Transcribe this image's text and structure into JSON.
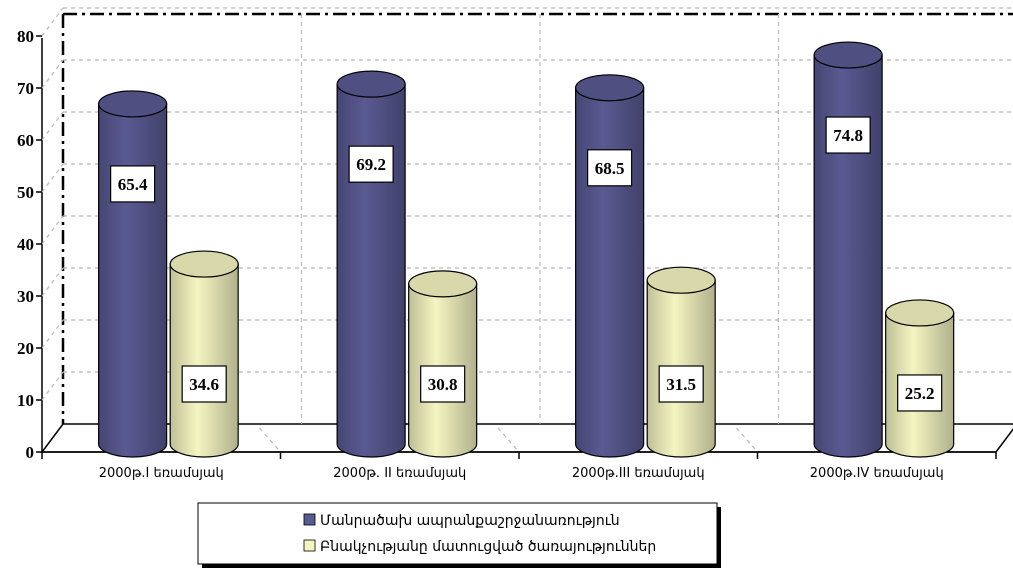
{
  "chart_data": {
    "type": "bar",
    "categories": [
      "2000թ.I եռամսյակ",
      "2000թ. II եռամսյակ",
      "2000թ.III եռամսյակ",
      "2000թ.IV եռամսյակ"
    ],
    "series": [
      {
        "name": "Մանրածախ ապրանքաշրջանառություն",
        "values": [
          65.4,
          69.2,
          68.5,
          74.8
        ],
        "color": "#5a5a93"
      },
      {
        "name": "Բնակչությանը մատուցված ծառայություններ",
        "values": [
          34.6,
          30.8,
          31.5,
          25.2
        ],
        "color": "#f5f5c2"
      }
    ],
    "y_ticks": [
      "0",
      "10",
      "20",
      "30",
      "40",
      "50",
      "60",
      "70",
      "80"
    ],
    "data_labels": [
      [
        "65.4",
        "69.2",
        "68.5",
        "74.8"
      ],
      [
        "34.6",
        "30.8",
        "31.5",
        "25.2"
      ]
    ],
    "ylim": [
      0,
      80
    ],
    "grid": true,
    "legend_position": "bottom"
  }
}
